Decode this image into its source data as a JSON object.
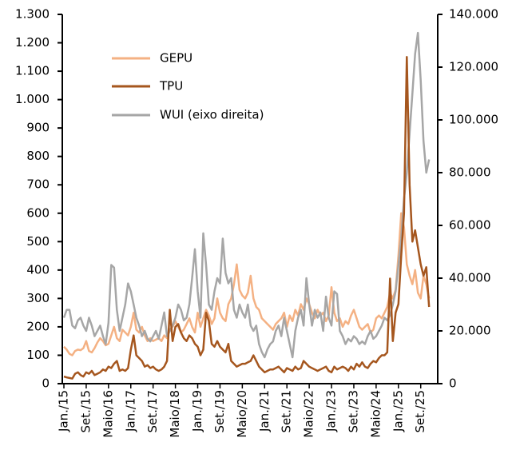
{
  "chart_data": {
    "type": "line",
    "categories": [
      "Jan./15",
      null,
      null,
      null,
      null,
      null,
      null,
      null,
      "Set./15",
      null,
      null,
      null,
      null,
      null,
      null,
      null,
      "Maio/16",
      null,
      null,
      null,
      null,
      null,
      null,
      null,
      "Jan./17",
      null,
      null,
      null,
      null,
      null,
      null,
      null,
      "Set./17",
      null,
      null,
      null,
      null,
      null,
      null,
      null,
      "Maio/18",
      null,
      null,
      null,
      null,
      null,
      null,
      null,
      "Jan./19",
      null,
      null,
      null,
      null,
      null,
      null,
      null,
      "Set./19",
      null,
      null,
      null,
      null,
      null,
      null,
      null,
      "Maio/20",
      null,
      null,
      null,
      null,
      null,
      null,
      null,
      "Jan./21",
      null,
      null,
      null,
      null,
      null,
      null,
      null,
      "Set./21",
      null,
      null,
      null,
      null,
      null,
      null,
      null,
      "Maio/22",
      null,
      null,
      null,
      null,
      null,
      null,
      null,
      "Jan./23",
      null,
      null,
      null,
      null,
      null,
      null,
      null,
      "Set./23",
      null,
      null,
      null,
      null,
      null,
      null,
      null,
      "Maio/24",
      null,
      null,
      null,
      null,
      null,
      null,
      null,
      "Jan./25",
      null,
      null,
      null,
      null,
      null,
      null,
      null,
      "Set./25",
      null,
      null,
      null
    ],
    "series": [
      {
        "name": "GEPU",
        "color": "#f4b183",
        "values": [
          130,
          120,
          105,
          100,
          115,
          120,
          118,
          125,
          150,
          115,
          110,
          125,
          145,
          160,
          150,
          135,
          140,
          170,
          200,
          160,
          150,
          190,
          180,
          170,
          200,
          250,
          190,
          180,
          200,
          170,
          150,
          160,
          150,
          155,
          160,
          150,
          170,
          160,
          190,
          200,
          220,
          200,
          180,
          190,
          210,
          230,
          200,
          180,
          250,
          200,
          230,
          260,
          240,
          210,
          230,
          300,
          250,
          230,
          220,
          280,
          300,
          350,
          420,
          330,
          310,
          300,
          320,
          380,
          300,
          270,
          260,
          230,
          220,
          210,
          200,
          190,
          210,
          220,
          230,
          250,
          200,
          240,
          220,
          260,
          240,
          280,
          260,
          300,
          280,
          250,
          230,
          260,
          240,
          250,
          220,
          240,
          340,
          250,
          220,
          230,
          200,
          220,
          210,
          240,
          260,
          230,
          200,
          190,
          200,
          210,
          180,
          190,
          230,
          240,
          230,
          250,
          270,
          320,
          300,
          330,
          450,
          600,
          550,
          420,
          380,
          350,
          400,
          320,
          300,
          380,
          350,
          300
        ]
      },
      {
        "name": "TPU",
        "color": "#a5561e",
        "values": [
          25,
          22,
          20,
          18,
          35,
          40,
          30,
          25,
          40,
          35,
          45,
          30,
          35,
          40,
          50,
          45,
          60,
          55,
          70,
          80,
          45,
          50,
          45,
          55,
          120,
          170,
          100,
          90,
          80,
          60,
          65,
          55,
          60,
          50,
          45,
          50,
          60,
          80,
          260,
          150,
          200,
          210,
          180,
          160,
          150,
          170,
          160,
          140,
          130,
          100,
          120,
          250,
          220,
          140,
          130,
          150,
          130,
          120,
          110,
          140,
          80,
          70,
          60,
          65,
          70,
          70,
          75,
          80,
          100,
          80,
          60,
          50,
          40,
          45,
          50,
          50,
          55,
          60,
          50,
          40,
          55,
          50,
          45,
          60,
          50,
          55,
          80,
          70,
          60,
          55,
          50,
          45,
          50,
          55,
          60,
          45,
          40,
          60,
          50,
          55,
          60,
          55,
          45,
          60,
          50,
          70,
          60,
          75,
          60,
          55,
          70,
          80,
          75,
          90,
          100,
          100,
          110,
          370,
          150,
          250,
          280,
          450,
          600,
          1150,
          700,
          500,
          540,
          480,
          420,
          380,
          410,
          270
        ]
      },
      {
        "name": "WUI (eixo direita)",
        "color": "#a6a6a6",
        "axis": "y2",
        "values": [
          25000,
          28000,
          28000,
          22000,
          21000,
          24000,
          25000,
          22000,
          20000,
          25000,
          22000,
          18000,
          20000,
          22000,
          18000,
          15000,
          23000,
          45000,
          44000,
          28000,
          20000,
          25000,
          30000,
          38000,
          35000,
          30000,
          25000,
          22000,
          18000,
          20000,
          17000,
          16000,
          18000,
          20000,
          17000,
          22000,
          27000,
          18000,
          20000,
          22000,
          25000,
          30000,
          28000,
          24000,
          25000,
          30000,
          40000,
          51000,
          35000,
          25000,
          57000,
          45000,
          30000,
          28000,
          35000,
          40000,
          38000,
          55000,
          42000,
          38000,
          40000,
          28000,
          25000,
          30000,
          27000,
          25000,
          30000,
          22000,
          20000,
          22000,
          15000,
          12000,
          10000,
          13000,
          15000,
          16000,
          20000,
          22000,
          18000,
          25000,
          20000,
          15000,
          10000,
          20000,
          25000,
          28000,
          22000,
          40000,
          30000,
          22000,
          28000,
          25000,
          27000,
          20000,
          33000,
          25000,
          22000,
          35000,
          34000,
          20000,
          18000,
          15000,
          17000,
          16000,
          18000,
          17000,
          15000,
          16000,
          15000,
          18000,
          20000,
          17000,
          18000,
          20000,
          22000,
          25000,
          24000,
          26000,
          30000,
          35000,
          45000,
          55000,
          70000,
          80000,
          95000,
          110000,
          125000,
          133000,
          115000,
          92000,
          80000,
          85000
        ]
      }
    ],
    "ylim": [
      0,
      1300
    ],
    "yticks": [
      0,
      100,
      200,
      300,
      400,
      500,
      600,
      700,
      800,
      900,
      {
        "value": 1000,
        "label": "1.000"
      },
      {
        "value": 1100,
        "label": "1.100"
      },
      {
        "value": 1200,
        "label": "1.200"
      },
      {
        "value": 1300,
        "label": "1.300"
      }
    ],
    "y2lim": [
      0,
      140000
    ],
    "y2ticks": [
      0,
      {
        "value": 20000,
        "label": "20.000"
      },
      {
        "value": 40000,
        "label": "40.000"
      },
      {
        "value": 60000,
        "label": "60.000"
      },
      {
        "value": 80000,
        "label": "80.000"
      },
      {
        "value": 100000,
        "label": "100.000"
      },
      {
        "value": 120000,
        "label": "120.000"
      },
      {
        "value": 140000,
        "label": "140.000"
      }
    ],
    "legend": "top-left"
  }
}
